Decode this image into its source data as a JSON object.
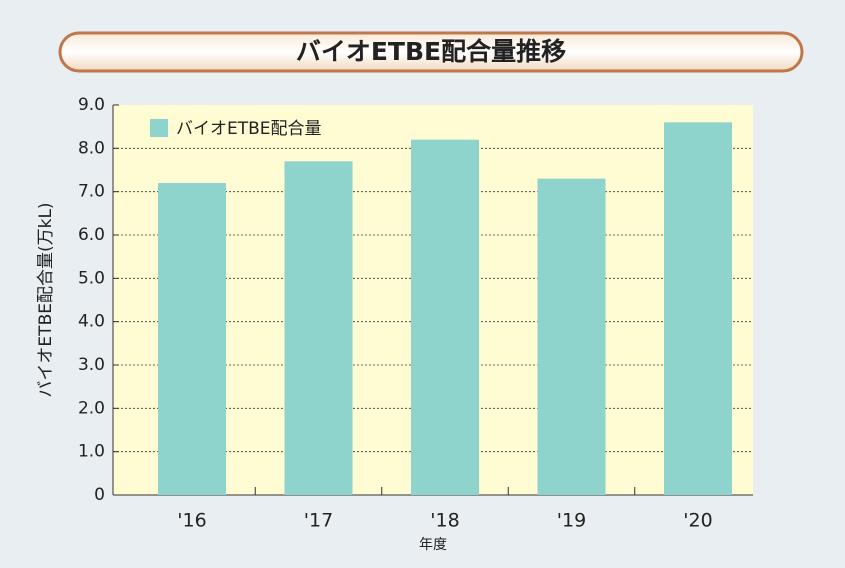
{
  "chart_data": {
    "type": "bar",
    "title": "バイオETBE配合量推移",
    "categories": [
      "'16",
      "'17",
      "'18",
      "'19",
      "'20"
    ],
    "series": [
      {
        "name": "バイオETBE配合量",
        "color": "#8ed3cc",
        "values": [
          7.2,
          7.7,
          8.2,
          7.3,
          8.6
        ]
      }
    ],
    "ylim": [
      0,
      9
    ],
    "yticks": [
      0,
      {
        "value": 1,
        "label": "1.0"
      },
      {
        "value": 2,
        "label": "2.0"
      },
      {
        "value": 3,
        "label": "3.0"
      },
      {
        "value": 4,
        "label": "4.0"
      },
      {
        "value": 5,
        "label": "5.0"
      },
      {
        "value": 6,
        "label": "6.0"
      },
      {
        "value": 7,
        "label": "7.0"
      },
      {
        "value": 8,
        "label": "8.0"
      },
      {
        "value": 9,
        "label": "9.0"
      }
    ],
    "y_label": "バイオETBE配合量(万kL)",
    "x_label": "年度",
    "grid": true,
    "legend": "upper left"
  }
}
